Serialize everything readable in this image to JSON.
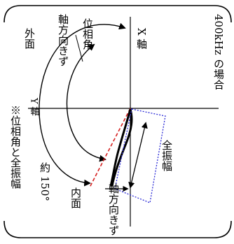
{
  "diagram": {
    "title": "※位相角と全振幅",
    "frequency_caption": "400kHz の場合",
    "labels": {
      "x_axis": "X 軸",
      "y_axis": "Y 軸",
      "phase_angle": "位相角",
      "outer_surface": "外面",
      "outer_flaw_direction": "軸方向きず",
      "inner_surface": "内面",
      "inner_flaw_direction": "軸方向きず",
      "full_amplitude": "全振幅",
      "approx_angle": "約 150°"
    },
    "colors": {
      "phase_line": "#d62020",
      "amplitude_box": "#2a2ad6",
      "axis": "#000000",
      "frame": "#000000"
    }
  }
}
